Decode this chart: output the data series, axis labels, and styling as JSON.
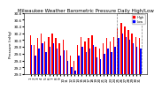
{
  "title": "Milwaukee Weather Barometric Pressure Daily High/Low",
  "ylabel": "Pressure (inHg)",
  "background_color": "#ffffff",
  "ylim": [
    29.0,
    30.8
  ],
  "yticks": [
    29.0,
    29.2,
    29.4,
    29.6,
    29.8,
    30.0,
    30.2,
    30.4,
    30.6,
    30.8
  ],
  "bar_width": 0.35,
  "days": [
    1,
    2,
    3,
    4,
    5,
    6,
    7,
    8,
    9,
    10,
    11,
    12,
    13,
    14,
    15,
    16,
    17,
    18,
    19,
    20,
    21,
    22,
    23,
    24,
    25,
    26,
    27,
    28,
    29,
    30,
    31
  ],
  "highs": [
    30.15,
    29.85,
    30.05,
    30.18,
    29.95,
    30.1,
    30.2,
    30.05,
    29.9,
    30.0,
    29.7,
    29.55,
    29.4,
    29.85,
    30.1,
    29.95,
    30.05,
    30.15,
    29.8,
    29.75,
    29.9,
    30.05,
    29.95,
    30.1,
    30.35,
    30.5,
    30.4,
    30.3,
    30.2,
    30.1,
    30.05
  ],
  "lows": [
    29.85,
    29.55,
    29.75,
    29.9,
    29.65,
    29.8,
    29.9,
    29.75,
    29.55,
    29.7,
    29.4,
    29.2,
    29.1,
    29.55,
    29.8,
    29.65,
    29.75,
    29.85,
    29.5,
    29.45,
    29.6,
    29.75,
    29.65,
    29.8,
    30.05,
    30.2,
    30.1,
    30.0,
    29.9,
    29.8,
    29.75
  ],
  "high_color": "#ff0000",
  "low_color": "#0000ff",
  "legend_high": "High",
  "legend_low": "Low",
  "title_fontsize": 4,
  "tick_fontsize": 3,
  "ylabel_fontsize": 3
}
